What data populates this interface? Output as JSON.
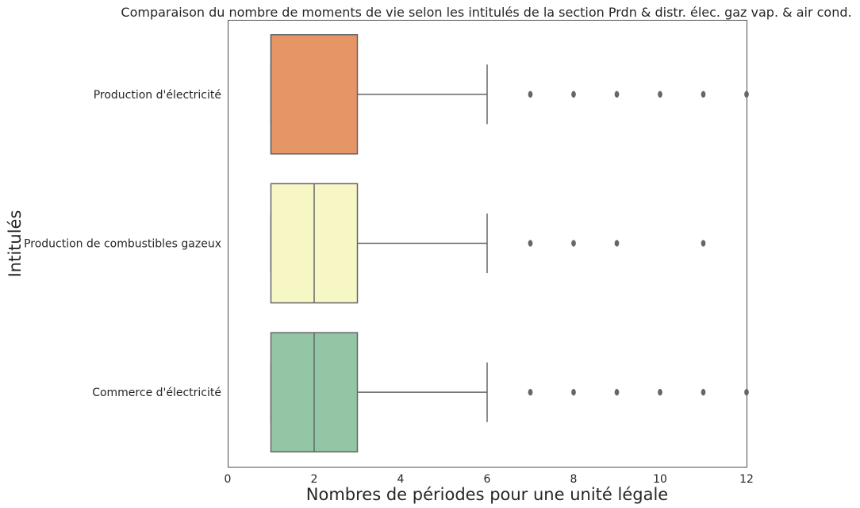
{
  "chart_data": {
    "type": "box",
    "orientation": "horizontal",
    "title": "Comparaison du nombre de moments de vie selon les intitulés de la section Prdn & distr. élec. gaz vap. & air cond.",
    "xlabel": "Nombres de périodes pour une unité légale",
    "ylabel": "Intitulés",
    "xlim": [
      0,
      12
    ],
    "xticks": [
      0,
      2,
      4,
      6,
      8,
      10,
      12
    ],
    "grid": false,
    "categories": [
      "Production d'électricité",
      "Production de combustibles gazeux",
      "Commerce d'électricité"
    ],
    "boxes": [
      {
        "category": "Production d'électricité",
        "color": "#E59566",
        "whisker_low": 1,
        "q1": 1,
        "median": 1,
        "q3": 3,
        "whisker_high": 6,
        "outliers": [
          7,
          8,
          9,
          10,
          11,
          12
        ]
      },
      {
        "category": "Production de combustibles gazeux",
        "color": "#F7F7C5",
        "whisker_low": 1,
        "q1": 1,
        "median": 2,
        "q3": 3,
        "whisker_high": 6,
        "outliers": [
          7,
          8,
          9,
          11
        ]
      },
      {
        "category": "Commerce d'électricité",
        "color": "#92C6A4",
        "whisker_low": 1,
        "q1": 1,
        "median": 2,
        "q3": 3,
        "whisker_high": 6,
        "outliers": [
          7,
          8,
          9,
          10,
          11,
          12
        ]
      }
    ],
    "line_color": "#666666"
  }
}
